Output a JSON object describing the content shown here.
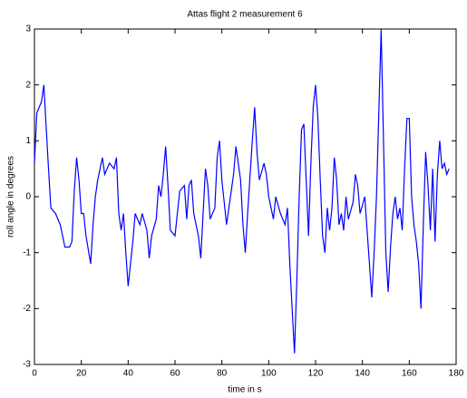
{
  "chart_data": {
    "type": "line",
    "title": "Attas flight 2 measurement 6",
    "xlabel": "time in s",
    "ylabel": "roll angle in degrees",
    "x": [
      0,
      1,
      3,
      4,
      6,
      7,
      9,
      11,
      12,
      13,
      15,
      16,
      17,
      18,
      19,
      20,
      21,
      22,
      24,
      25,
      26,
      27,
      29,
      30,
      32,
      34,
      35,
      36,
      37,
      38,
      39,
      40,
      42,
      43,
      45,
      46,
      48,
      49,
      50,
      52,
      53,
      54,
      55,
      56,
      57,
      58,
      60,
      61,
      62,
      64,
      65,
      66,
      67,
      68,
      70,
      71,
      72,
      73,
      74,
      75,
      77,
      78,
      79,
      80,
      82,
      83,
      85,
      86,
      88,
      89,
      90,
      91,
      93,
      94,
      95,
      96,
      98,
      99,
      100,
      102,
      103,
      105,
      107,
      108,
      109,
      110,
      111,
      112,
      113,
      114,
      115,
      116,
      117,
      118,
      119,
      120,
      121,
      122,
      123,
      124,
      125,
      126,
      127,
      128,
      129,
      130,
      131,
      132,
      133,
      134,
      136,
      137,
      138,
      139,
      141,
      142,
      143,
      144,
      145,
      146,
      147,
      148,
      149,
      150,
      151,
      152,
      153,
      154,
      155,
      156,
      157,
      158,
      159,
      160,
      161,
      162,
      163,
      164,
      165,
      166,
      167,
      168,
      169,
      170,
      171,
      172,
      173,
      174,
      175,
      176,
      177
    ],
    "series": [
      {
        "name": "roll angle",
        "color": "#0000ff",
        "values": [
          0.6,
          1.5,
          1.7,
          2.0,
          0.5,
          -0.2,
          -0.3,
          -0.5,
          -0.7,
          -0.9,
          -0.9,
          -0.8,
          0.1,
          0.7,
          0.3,
          -0.3,
          -0.3,
          -0.7,
          -1.2,
          -0.5,
          0.0,
          0.3,
          0.7,
          0.4,
          0.6,
          0.5,
          0.7,
          -0.3,
          -0.6,
          -0.3,
          -1.0,
          -1.6,
          -0.8,
          -0.3,
          -0.5,
          -0.3,
          -0.6,
          -1.1,
          -0.7,
          -0.4,
          0.2,
          0.0,
          0.4,
          0.9,
          0.2,
          -0.6,
          -0.7,
          -0.3,
          0.1,
          0.2,
          -0.4,
          0.2,
          0.3,
          -0.3,
          -0.7,
          -1.1,
          -0.3,
          0.5,
          0.2,
          -0.4,
          -0.2,
          0.7,
          1.0,
          0.3,
          -0.5,
          -0.2,
          0.4,
          0.9,
          0.3,
          -0.5,
          -1.0,
          -0.3,
          1.0,
          1.6,
          0.8,
          0.3,
          0.6,
          0.4,
          0.0,
          -0.4,
          0.0,
          -0.3,
          -0.5,
          -0.2,
          -1.2,
          -2.0,
          -2.8,
          -1.5,
          0.0,
          1.2,
          1.3,
          0.3,
          -0.7,
          0.6,
          1.6,
          2.0,
          1.4,
          0.3,
          -0.7,
          -1.0,
          -0.2,
          -0.6,
          -0.2,
          0.7,
          0.3,
          -0.5,
          -0.3,
          -0.6,
          0.0,
          -0.4,
          -0.1,
          0.4,
          0.2,
          -0.3,
          0.0,
          -0.6,
          -1.2,
          -1.8,
          -1.0,
          0.0,
          1.5,
          3.0,
          1.0,
          -1.0,
          -1.7,
          -0.9,
          -0.3,
          0.0,
          -0.4,
          -0.2,
          -0.6,
          0.5,
          1.4,
          1.4,
          0.0,
          -0.5,
          -0.8,
          -1.2,
          -2.0,
          -0.5,
          0.8,
          0.2,
          -0.6,
          0.5,
          -0.8,
          0.4,
          1.0,
          0.5,
          0.6,
          0.4,
          0.5
        ]
      }
    ],
    "xlim": [
      0,
      180
    ],
    "xticks": [
      0,
      20,
      40,
      60,
      80,
      100,
      120,
      140,
      160,
      180
    ],
    "ylim": [
      -3,
      3
    ],
    "yticks": [
      -3,
      -2,
      -1,
      0,
      1,
      2,
      3
    ],
    "grid": false
  }
}
